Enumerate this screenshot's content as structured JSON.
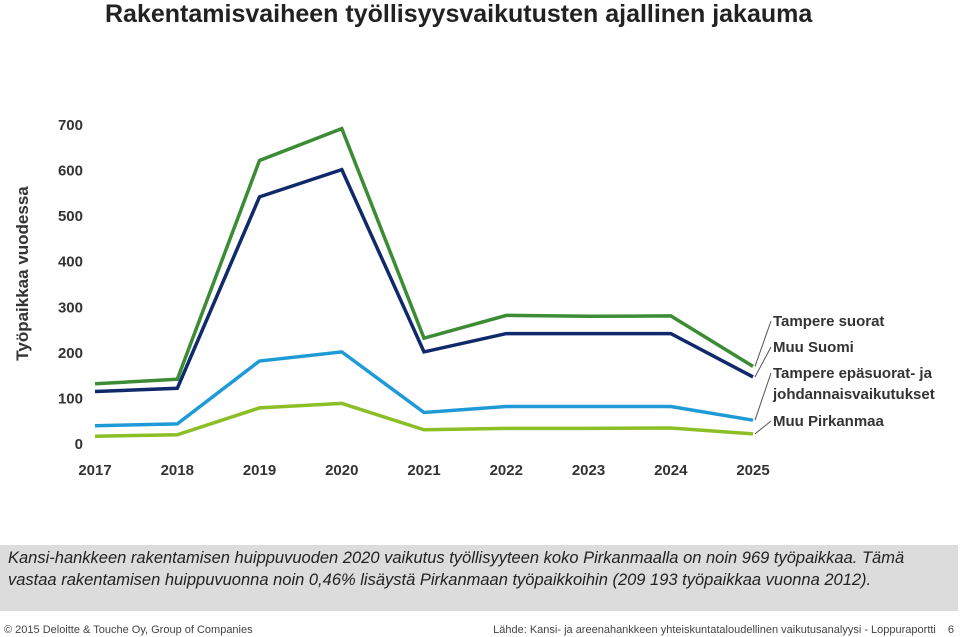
{
  "title": "Rakentamisvaiheen työllisyysvaikutusten ajallinen jakauma",
  "chart_data": {
    "type": "line",
    "title": "Rakentamisvaiheen työllisyysvaikutusten ajallinen jakauma",
    "xlabel": "",
    "ylabel": "Työpaikkaa vuodessa",
    "x": [
      "2017",
      "2018",
      "2019",
      "2020",
      "2021",
      "2022",
      "2023",
      "2024",
      "2025"
    ],
    "yticks": [
      0,
      100,
      200,
      300,
      400,
      500,
      600,
      700
    ],
    "ylim": [
      0,
      700
    ],
    "grid": false,
    "legend": "right, labels at line ends",
    "series": [
      {
        "name": "Tampere suorat",
        "color": "#3c8c35",
        "values": [
          130,
          140,
          620,
          690,
          230,
          280,
          278,
          279,
          168
        ]
      },
      {
        "name": "Muu Suomi",
        "color": "#10296b",
        "values": [
          113,
          120,
          540,
          600,
          200,
          240,
          240,
          240,
          145
        ]
      },
      {
        "name": "Tampere epäsuorat- ja johdannaisvaikutukset",
        "color": "#1e9bd7",
        "values": [
          38,
          42,
          180,
          200,
          67,
          80,
          80,
          80,
          50
        ]
      },
      {
        "name": "Muu Pirkanmaa",
        "color": "#8cbf26",
        "values": [
          15,
          18,
          77,
          87,
          29,
          32,
          32,
          33,
          20
        ]
      }
    ],
    "legend_lines": [
      [
        "Tampere suorat"
      ],
      [
        "Muu Suomi"
      ],
      [
        "Tampere epäsuorat- ja",
        "johdannaisvaikutukset"
      ],
      [
        "Muu Pirkanmaa"
      ]
    ]
  },
  "note": {
    "text": "Kansi-hankkeen rakentamisen huippuvuoden 2020 vaikutus työllisyyteen koko Pirkanmaalla on noin 969 työpaikkaa. Tämä vastaa rakentamisen huippuvuonna noin 0,46% lisäystä Pirkanmaan työpaikkoihin (209 193 työpaikkaa vuonna 2012)."
  },
  "footer": {
    "left": "© 2015 Deloitte & Touche Oy, Group of Companies",
    "right": "Lähde: Kansi- ja areenahankkeen yhteiskuntataloudellinen vaikutusanalyysi - Loppuraportti",
    "page": "6"
  }
}
